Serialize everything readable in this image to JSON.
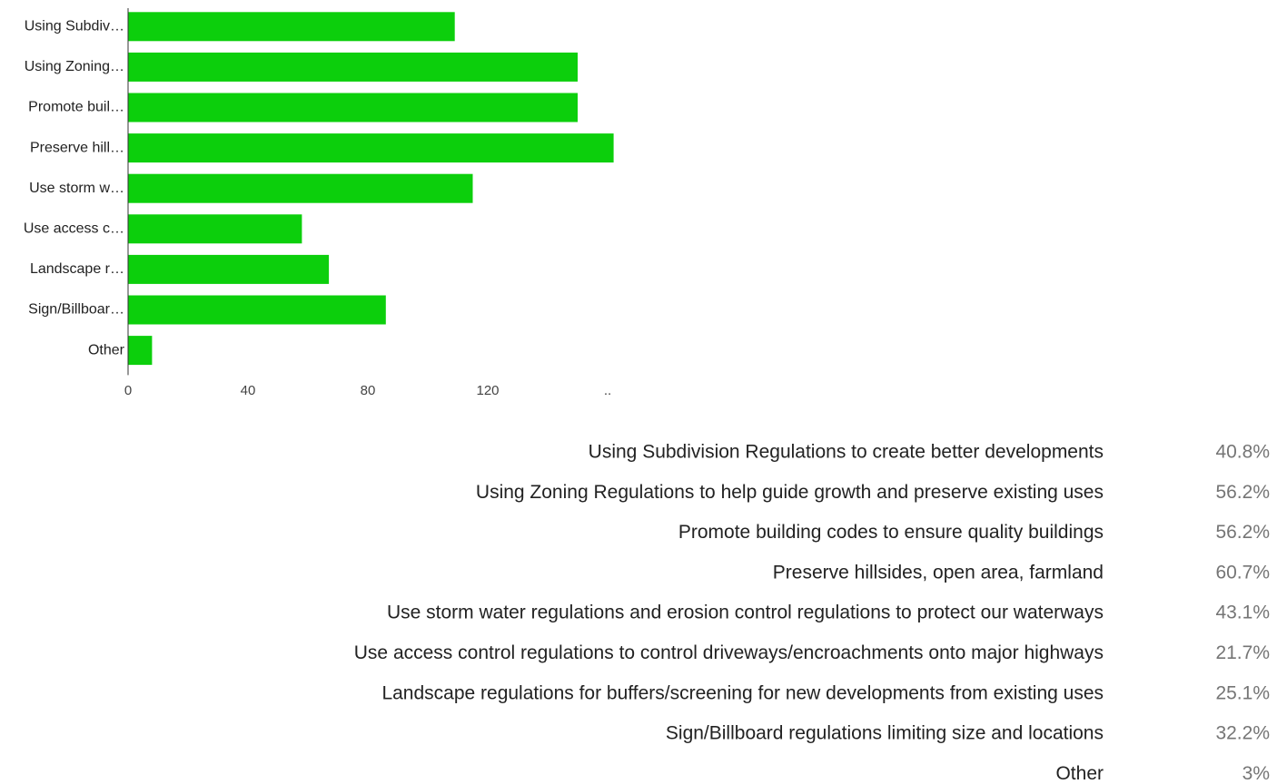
{
  "chart_data": {
    "type": "bar",
    "orientation": "horizontal",
    "categories": [
      "Using Subdiv…",
      "Using Zoning…",
      "Promote buil…",
      "Preserve hill…",
      "Use storm w…",
      "Use access c…",
      "Landscape r…",
      "Sign/Billboar…",
      "Other"
    ],
    "values": [
      109,
      150,
      150,
      162,
      115,
      58,
      67,
      86,
      8
    ],
    "color": "#0ccf0c",
    "xlim": [
      0,
      170
    ],
    "xticks": [
      0,
      40,
      80,
      120,
      {
        "value": 160,
        "label": ".."
      }
    ],
    "legend_labels": [
      "Using Subdivision Regulations to create better developments",
      "Using Zoning Regulations to help guide growth and preserve existing uses",
      "Promote building codes to ensure quality buildings",
      "Preserve hillsides, open area, farmland",
      "Use storm water regulations and erosion control regulations to protect our waterways",
      "Use access control regulations to control driveways/encroachments onto major highways",
      "Landscape regulations for buffers/screening for new developments from existing uses",
      "Sign/Billboard regulations limiting size and locations",
      "Other"
    ],
    "percentages": [
      40.8,
      56.2,
      56.2,
      60.7,
      43.1,
      21.7,
      25.1,
      32.2,
      3
    ],
    "percentage_labels": [
      "40.8%",
      "56.2%",
      "56.2%",
      "60.7%",
      "43.1%",
      "21.7%",
      "25.1%",
      "32.2%",
      "3%"
    ]
  }
}
